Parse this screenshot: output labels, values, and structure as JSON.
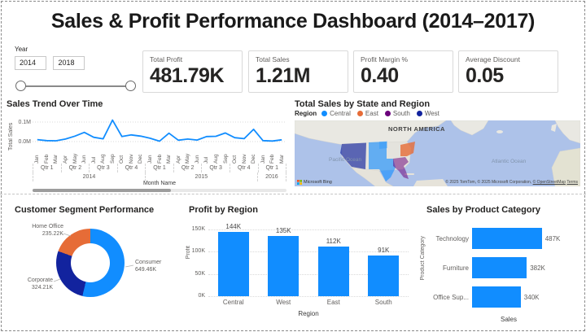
{
  "page": {
    "title": "Sales & Profit Performance Dashboard (2014–2017)"
  },
  "slicer": {
    "label": "Year",
    "from": "2014",
    "to": "2018"
  },
  "cards": [
    {
      "label": "Total Profit",
      "value": "481.79K"
    },
    {
      "label": "Total Sales",
      "value": "1.21M"
    },
    {
      "label": "Profit Margin %",
      "value": "0.40"
    },
    {
      "label": "Average Discount",
      "value": "0.05"
    }
  ],
  "chart_data": [
    {
      "type": "line",
      "title": "Sales Trend Over Time",
      "ylabel": "Total Sales",
      "xlabel": "Month Name",
      "yticks": [
        "0.1M",
        "0.0M"
      ],
      "ylim": [
        0,
        0.12
      ],
      "grid": "horizontal dotted",
      "color": "#118DFF",
      "x": [
        "Jan",
        "Feb",
        "Mar",
        "Apr",
        "May",
        "Jun",
        "Jul",
        "Aug",
        "Sep",
        "Oct",
        "Nov",
        "Dec",
        "Jan",
        "Feb",
        "Mar",
        "Apr",
        "May",
        "Jun",
        "Jul",
        "Aug",
        "Sep",
        "Oct",
        "Nov",
        "Dec",
        "Jan",
        "Feb",
        "Mar"
      ],
      "quarters": [
        {
          "label": "Qtr 1",
          "span": 3
        },
        {
          "label": "Qtr 2",
          "span": 3
        },
        {
          "label": "Qtr 3",
          "span": 3
        },
        {
          "label": "Qtr 4",
          "span": 3
        },
        {
          "label": "Qtr 1",
          "span": 3
        },
        {
          "label": "Qtr 2",
          "span": 3
        },
        {
          "label": "Qtr 3",
          "span": 3
        },
        {
          "label": "Qtr 4",
          "span": 3
        },
        {
          "label": "Qtr 1",
          "span": 3
        }
      ],
      "years": [
        {
          "label": "2014",
          "span": 12
        },
        {
          "label": "2015",
          "span": 12
        },
        {
          "label": "2016",
          "span": 3
        }
      ],
      "values_M": [
        0.01,
        0.005,
        0.004,
        0.013,
        0.028,
        0.047,
        0.022,
        0.014,
        0.11,
        0.026,
        0.034,
        0.028,
        0.017,
        0.002,
        0.043,
        0.007,
        0.013,
        0.008,
        0.026,
        0.027,
        0.044,
        0.02,
        0.015,
        0.063,
        0.005,
        0.003,
        0.009
      ]
    },
    {
      "type": "map",
      "title": "Total Sales by State and Region",
      "legend_title": "Region",
      "legend_position": "top",
      "legend": [
        {
          "label": "Central",
          "color": "#118DFF"
        },
        {
          "label": "East",
          "color": "#E66C37"
        },
        {
          "label": "South",
          "color": "#6B007B"
        },
        {
          "label": "West",
          "color": "#12239E"
        }
      ],
      "map_labels": {
        "continent": "NORTH AMERICA",
        "ocean_left": "Pacific Ocean",
        "ocean_right": "Atlantic Ocean"
      },
      "attribution": {
        "brand": "Microsoft Bing",
        "copyright": "© 2025 TomTom, © 2025 Microsoft Corporation, ",
        "osm_link": "© OpenStreetMap",
        "terms_link": "Terms"
      }
    },
    {
      "type": "pie",
      "title": "Customer Segment Performance",
      "donut": true,
      "labels": [
        "Consumer",
        "Corporate",
        "Home Office"
      ],
      "values_K": [
        649.46,
        324.21,
        235.22
      ],
      "value_labels": [
        "649.46K",
        "324.21K",
        "235.22K"
      ],
      "colors": [
        "#118DFF",
        "#12239E",
        "#E66C37"
      ]
    },
    {
      "type": "bar",
      "title": "Profit by Region",
      "xlabel": "Region",
      "ylabel": "Profit",
      "categories": [
        "Central",
        "West",
        "East",
        "South"
      ],
      "values_K": [
        144,
        135,
        112,
        91
      ],
      "value_labels": [
        "144K",
        "135K",
        "112K",
        "91K"
      ],
      "yticks": [
        "150K",
        "100K",
        "50K",
        "0K"
      ],
      "ylim": [
        0,
        150
      ],
      "grid": "horizontal dotted",
      "color": "#118DFF"
    },
    {
      "type": "bar",
      "orientation": "horizontal",
      "title": "Sales by Product Category",
      "xlabel": "Sales",
      "ylabel": "Product Category",
      "categories": [
        "Technology",
        "Furniture",
        "Office Sup..."
      ],
      "values_K": [
        487,
        382,
        340
      ],
      "value_labels": [
        "487K",
        "382K",
        "340K"
      ],
      "xlim": [
        0,
        500
      ],
      "color": "#118DFF"
    }
  ]
}
